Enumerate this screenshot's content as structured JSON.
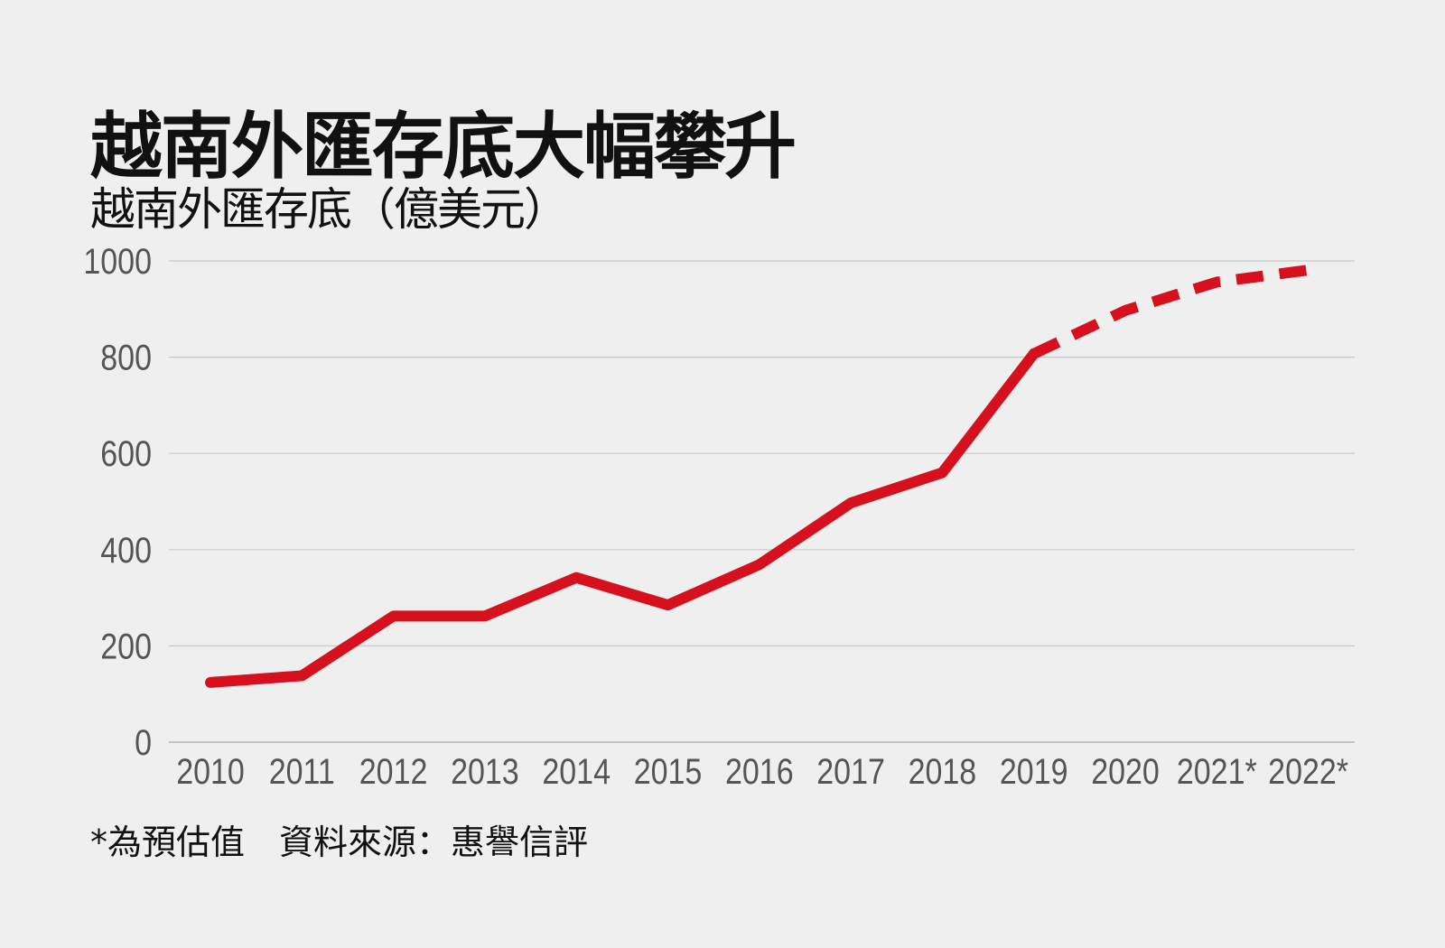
{
  "chart_data": {
    "type": "line",
    "title": "越南外匯存底大幅攀升",
    "subtitle": "越南外匯存底（億美元）",
    "categories": [
      "2010",
      "2011",
      "2012",
      "2013",
      "2014",
      "2015",
      "2016",
      "2017",
      "2018",
      "2019",
      "2020",
      "2021*",
      "2022*"
    ],
    "series": [
      {
        "values": [
          124,
          138,
          262,
          262,
          342,
          285,
          369,
          497,
          560,
          807,
          897,
          956,
          981
        ],
        "style_note": "solid through 2019, dashed 2019–2022"
      }
    ],
    "dashed_from_category": "2019",
    "ylim": [
      0,
      1000
    ],
    "yticks": [
      0,
      200,
      400,
      600,
      800,
      1000
    ],
    "grid": "horizontal",
    "colors": {
      "line": "#d7101d",
      "background": "#efefef",
      "grid": "#c8c8c8",
      "tick_text": "#555555"
    },
    "note": "*為預估值　資料來源：惠譽信評"
  }
}
